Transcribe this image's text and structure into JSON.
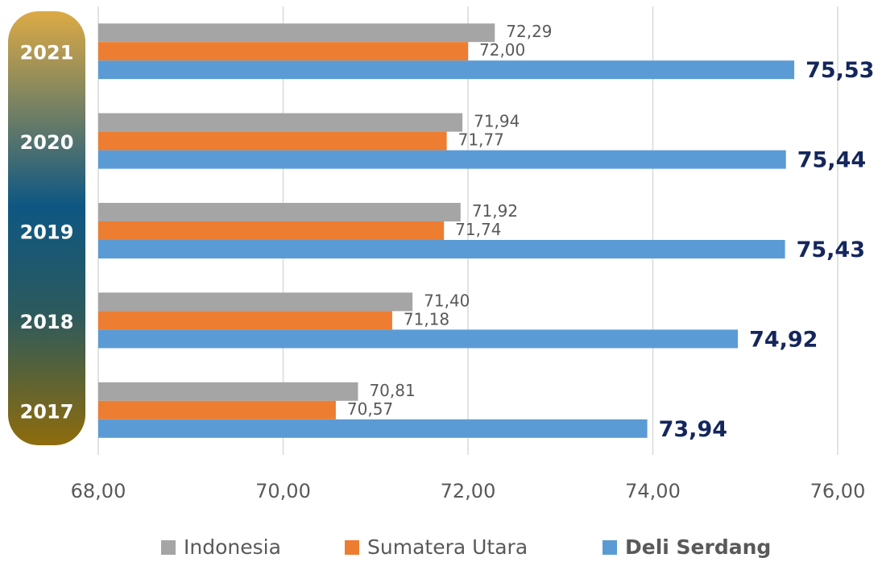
{
  "chart_data": {
    "type": "hbar",
    "categories": [
      "2021",
      "2020",
      "2019",
      "2018",
      "2017"
    ],
    "series": [
      {
        "name": "Indonesia",
        "color": "#a5a5a5",
        "values": [
          72.29,
          71.94,
          71.92,
          71.4,
          70.81
        ],
        "value_labels": [
          "72,29",
          "71,94",
          "71,92",
          "71,40",
          "70,81"
        ]
      },
      {
        "name": "Sumatera Utara",
        "color": "#ed7d31",
        "values": [
          72.0,
          71.77,
          71.74,
          71.18,
          70.57
        ],
        "value_labels": [
          "72,00",
          "71,77",
          "71,74",
          "71,18",
          "70,57"
        ]
      },
      {
        "name": "Deli Serdang",
        "color": "#5b9bd5",
        "values": [
          75.53,
          75.44,
          75.43,
          74.92,
          73.94
        ],
        "value_labels": [
          "75,53",
          "75,44",
          "75,43",
          "74,92",
          "73,94"
        ]
      }
    ],
    "xlim": [
      68,
      76
    ],
    "xticks": [
      {
        "value": 68,
        "label": "68,00"
      },
      {
        "value": 70,
        "label": "70,00"
      },
      {
        "value": 72,
        "label": "72,00"
      },
      {
        "value": 74,
        "label": "74,00"
      },
      {
        "value": 76,
        "label": "76,00"
      }
    ],
    "grid": true,
    "legend": "bottom"
  }
}
